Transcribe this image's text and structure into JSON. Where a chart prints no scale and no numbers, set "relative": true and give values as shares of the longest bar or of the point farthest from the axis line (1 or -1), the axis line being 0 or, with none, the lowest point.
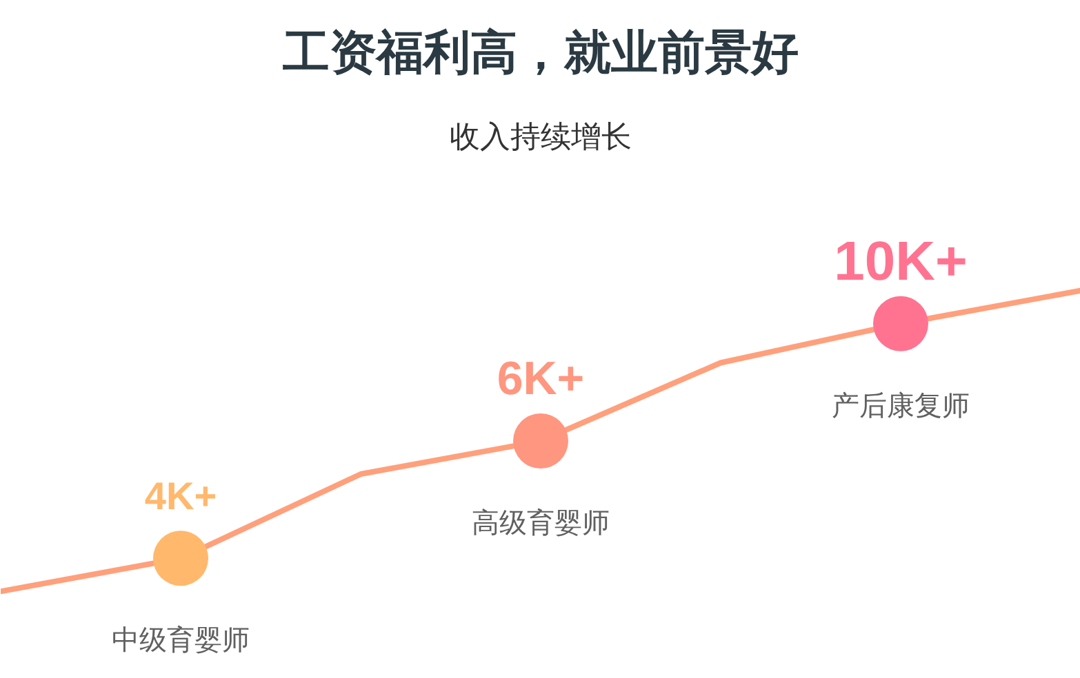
{
  "chart_data": {
    "type": "line",
    "title": "工资福利高，就业前景好",
    "subtitle": "收入持续增长",
    "relative": true,
    "grid": false,
    "categories": [
      null,
      "中级育婴师",
      null,
      "高级育婴师",
      null,
      "产后康复师",
      null
    ],
    "series": [
      {
        "color": "#ffa07c",
        "colors": [
          null,
          "#ffb86c",
          null,
          "#ff9680",
          null,
          "#ff7391",
          null
        ],
        "values": [
          0,
          0.11,
          0.39,
          0.5,
          0.76,
          0.89,
          1
        ]
      }
    ],
    "annotations": [
      {
        "text": "4K+",
        "x": "中级育婴师",
        "y": 0.11
      },
      {
        "text": "6K+",
        "x": "高级育婴师",
        "y": 0.5
      },
      {
        "text": "10K+",
        "x": "产后康复师",
        "y": 0.89
      }
    ]
  }
}
